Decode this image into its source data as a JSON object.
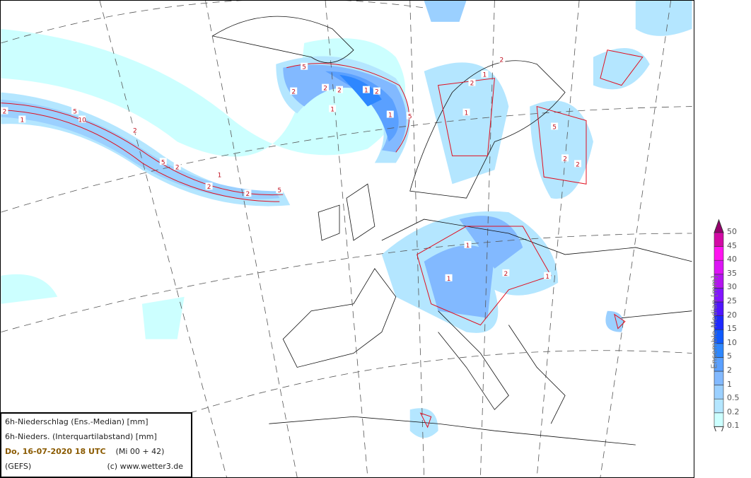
{
  "info": {
    "line1": "6h-Niederschlag (Ens.-Median) [mm]",
    "line2": "6h-Nieders. (Interquartilabstand) [mm]",
    "date": "Do, 16-07-2020   18 UTC",
    "run": "(Mi 00 + 42)",
    "model": "(GEFS)",
    "copyright": "(c) www.wetter3.de"
  },
  "legend": {
    "title": "Ensemble-Median [mm]",
    "levels": [
      "0.1",
      "0.2",
      "0.5",
      "1",
      "2",
      "5",
      "10",
      "15",
      "20",
      "25",
      "30",
      "35",
      "40",
      "45",
      "50"
    ],
    "colors": [
      "#ccffff",
      "#b4e6ff",
      "#9bd0ff",
      "#82b9ff",
      "#5aa0ff",
      "#2d87ff",
      "#0f5aff",
      "#1e28ff",
      "#5014ff",
      "#8214ff",
      "#b414f0",
      "#dc14f5",
      "#ff14f0",
      "#d20aa5",
      "#96006e"
    ],
    "under_color": "#ffffff",
    "over_color": "#96006e"
  },
  "map": {
    "contour_color": "#e01020",
    "contour_labels": [
      "1",
      "2",
      "5",
      "10",
      "2",
      "5",
      "2",
      "2",
      "1",
      "2",
      "5",
      "5",
      "2",
      "2",
      "1",
      "2",
      "1",
      "5",
      "2",
      "1",
      "2",
      "1",
      "1",
      "2",
      "5",
      "2",
      "2",
      "1",
      "2",
      "1",
      "1"
    ],
    "coast_color": "#000000"
  }
}
